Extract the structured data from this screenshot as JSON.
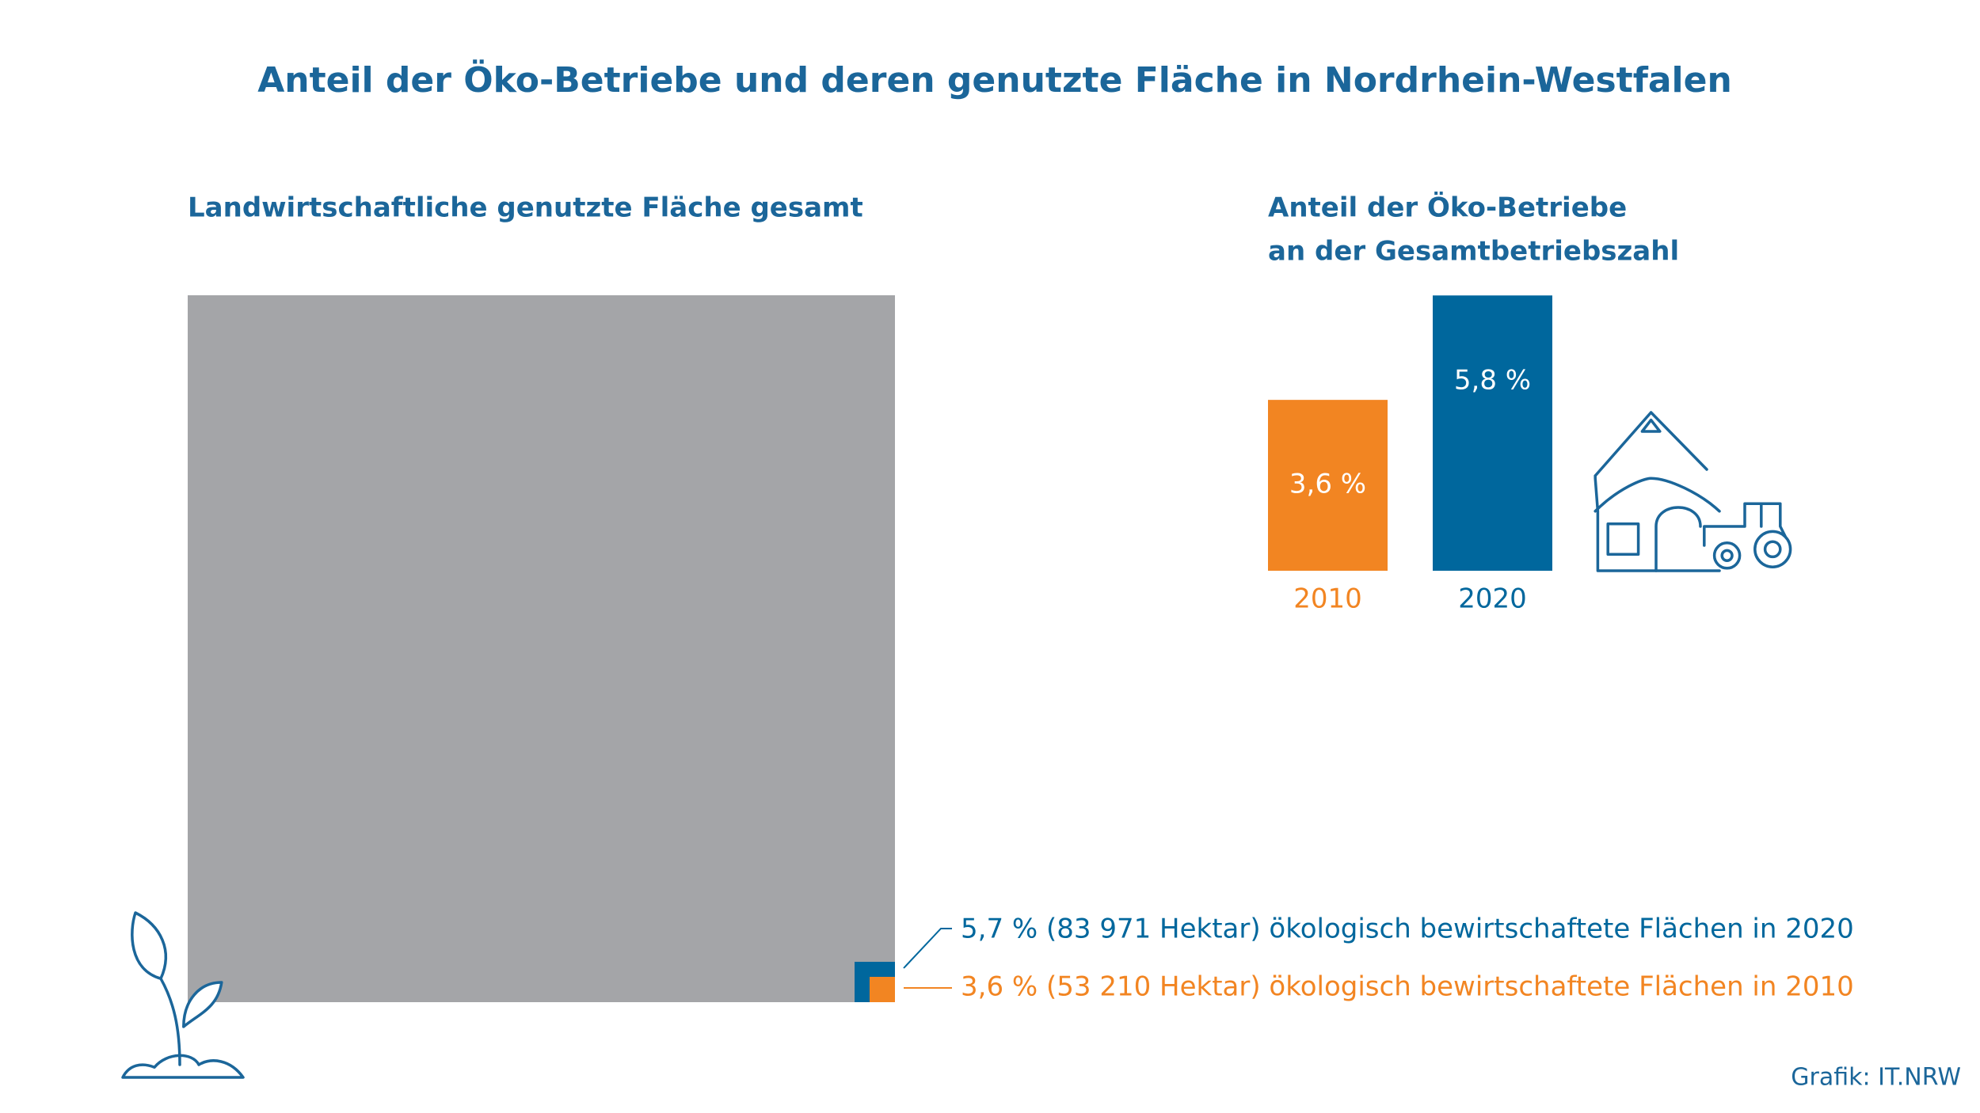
{
  "title": "Anteil der Öko-Betriebe und deren genutzte Fläche in Nordrhein-Westfalen",
  "source": "Grafik: IT.NRW",
  "chart_data": [
    {
      "type": "area-square",
      "title": "Landwirtschaftliche genutzte Fläche gesamt",
      "color": "#a4a5a8",
      "annotations": [
        {
          "text": "5,7 % (83 971 Hektar) ökologisch bewirtschaftete Flächen in 2020",
          "color": "#00679d"
        },
        {
          "text": "3,6 % (53 210 Hektar) ökologisch bewirtschaftete Flächen in 2010",
          "color": "#f28522"
        }
      ]
    },
    {
      "type": "bar",
      "title": [
        "Anteil der Öko-Betriebe",
        "an der Gesamtbetriebszahl"
      ],
      "categories": [
        "2010",
        "2020"
      ],
      "values": [
        3.6,
        5.8
      ],
      "value_labels": [
        "3,6 %",
        "5,8 %"
      ],
      "colors": [
        "#f28522",
        "#00679d"
      ]
    }
  ]
}
